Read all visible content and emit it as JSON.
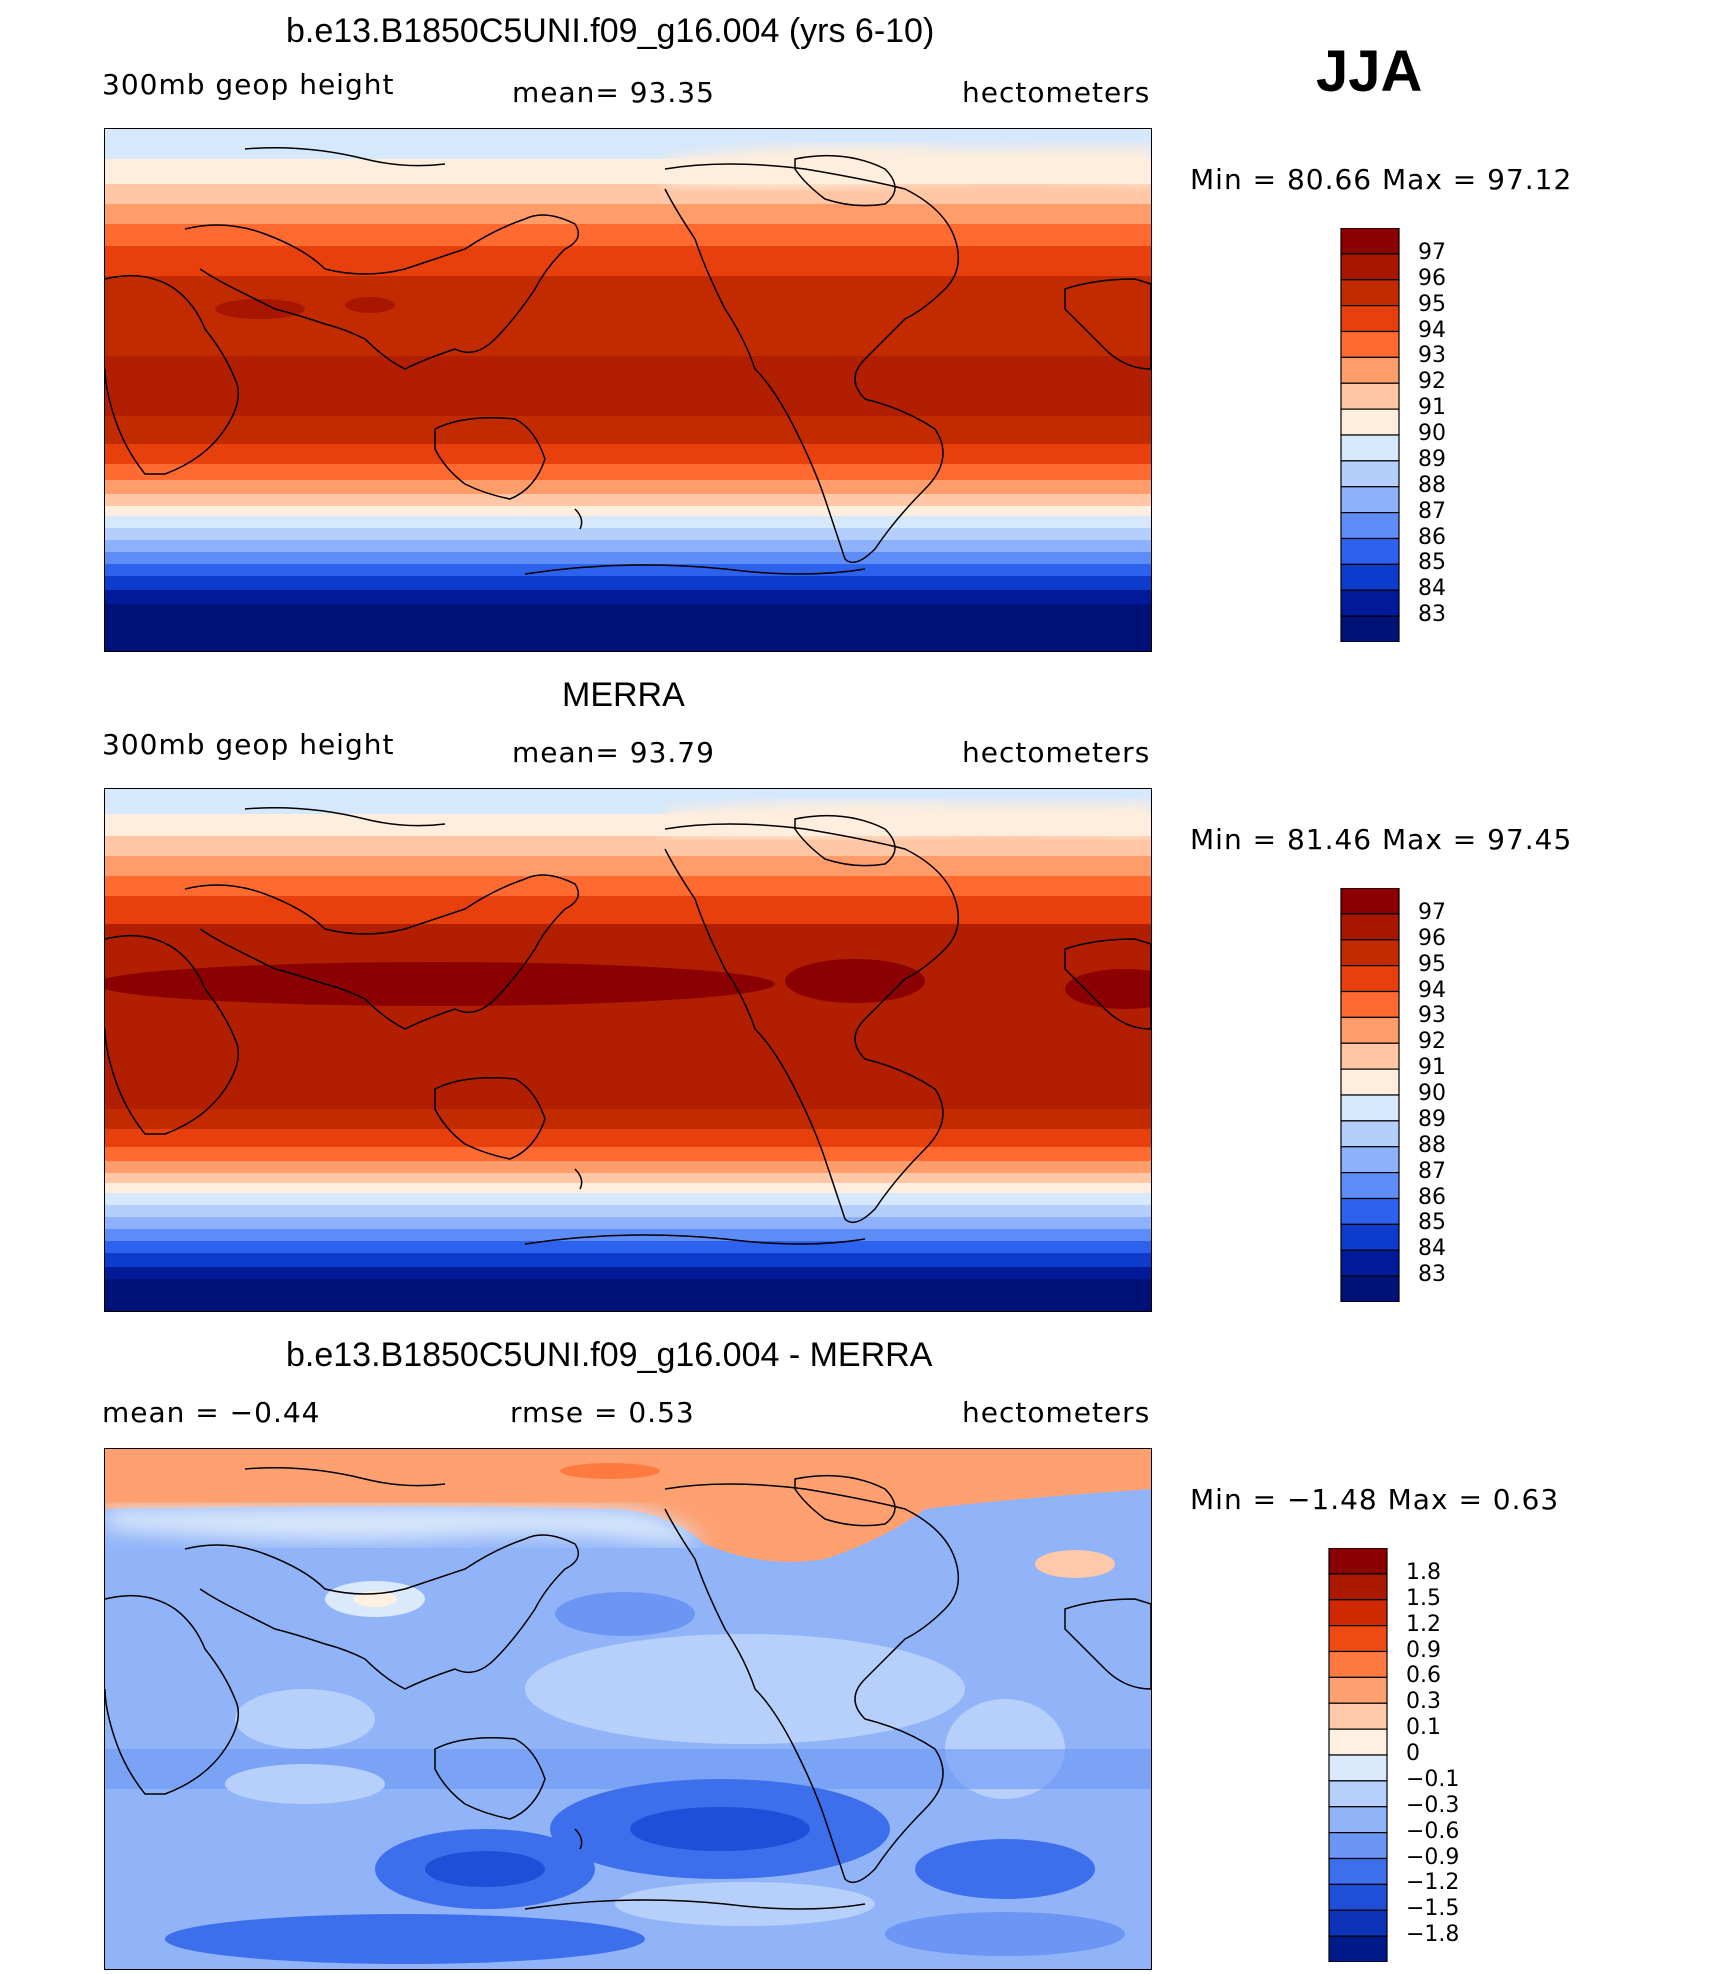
{
  "season": "JJA",
  "panels": [
    {
      "title": "b.e13.B1850C5UNI.f09_g16.004 (yrs 6-10)",
      "left_label": "300mb  geop  height",
      "center_label": "mean=   93.35",
      "right_label": "hectometers",
      "minmax": "Min  =    80.66  Max  =    97.12",
      "colorbar": [
        "97",
        "96",
        "95",
        "94",
        "93",
        "92",
        "91",
        "90",
        "89",
        "88",
        "87",
        "86",
        "85",
        "84",
        "83"
      ]
    },
    {
      "title": "MERRA",
      "left_label": "300mb  geop  height",
      "center_label": "mean=   93.79",
      "right_label": "hectometers",
      "minmax": "Min  =    81.46  Max  =    97.45",
      "colorbar": [
        "97",
        "96",
        "95",
        "94",
        "93",
        "92",
        "91",
        "90",
        "89",
        "88",
        "87",
        "86",
        "85",
        "84",
        "83"
      ]
    },
    {
      "title": "b.e13.B1850C5UNI.f09_g16.004 - MERRA",
      "left_label": "mean  =    −0.44",
      "center_label": "rmse  =     0.53",
      "right_label": "hectometers",
      "minmax": "Min  =    −1.48  Max  =      0.63",
      "colorbar": [
        "1.8",
        "1.5",
        "1.2",
        "0.9",
        "0.6",
        "0.3",
        "0.1",
        "0",
        "−0.1",
        "−0.3",
        "−0.6",
        "−0.9",
        "−1.2",
        "−1.5",
        "−1.8"
      ]
    }
  ],
  "colors": {
    "abs_scale": [
      "#8b0000",
      "#a81600",
      "#c22a00",
      "#e8400c",
      "#ff6a30",
      "#ff9d6a",
      "#ffc7a6",
      "#ffeedd",
      "#d6e8fb",
      "#b4cffb",
      "#8db2fb",
      "#5f8df7",
      "#2d62ee",
      "#0d3ccc",
      "#001a99",
      "#001178"
    ],
    "diff_scale": [
      "#8b0000",
      "#aa1800",
      "#d02800",
      "#ee4a12",
      "#ff7a40",
      "#ffa070",
      "#ffc8a8",
      "#fff0e2",
      "#dae9fb",
      "#b7d0fb",
      "#91b3f8",
      "#6b96f4",
      "#3d6fec",
      "#1f4fd9",
      "#0d33b8",
      "#001a8a"
    ]
  }
}
